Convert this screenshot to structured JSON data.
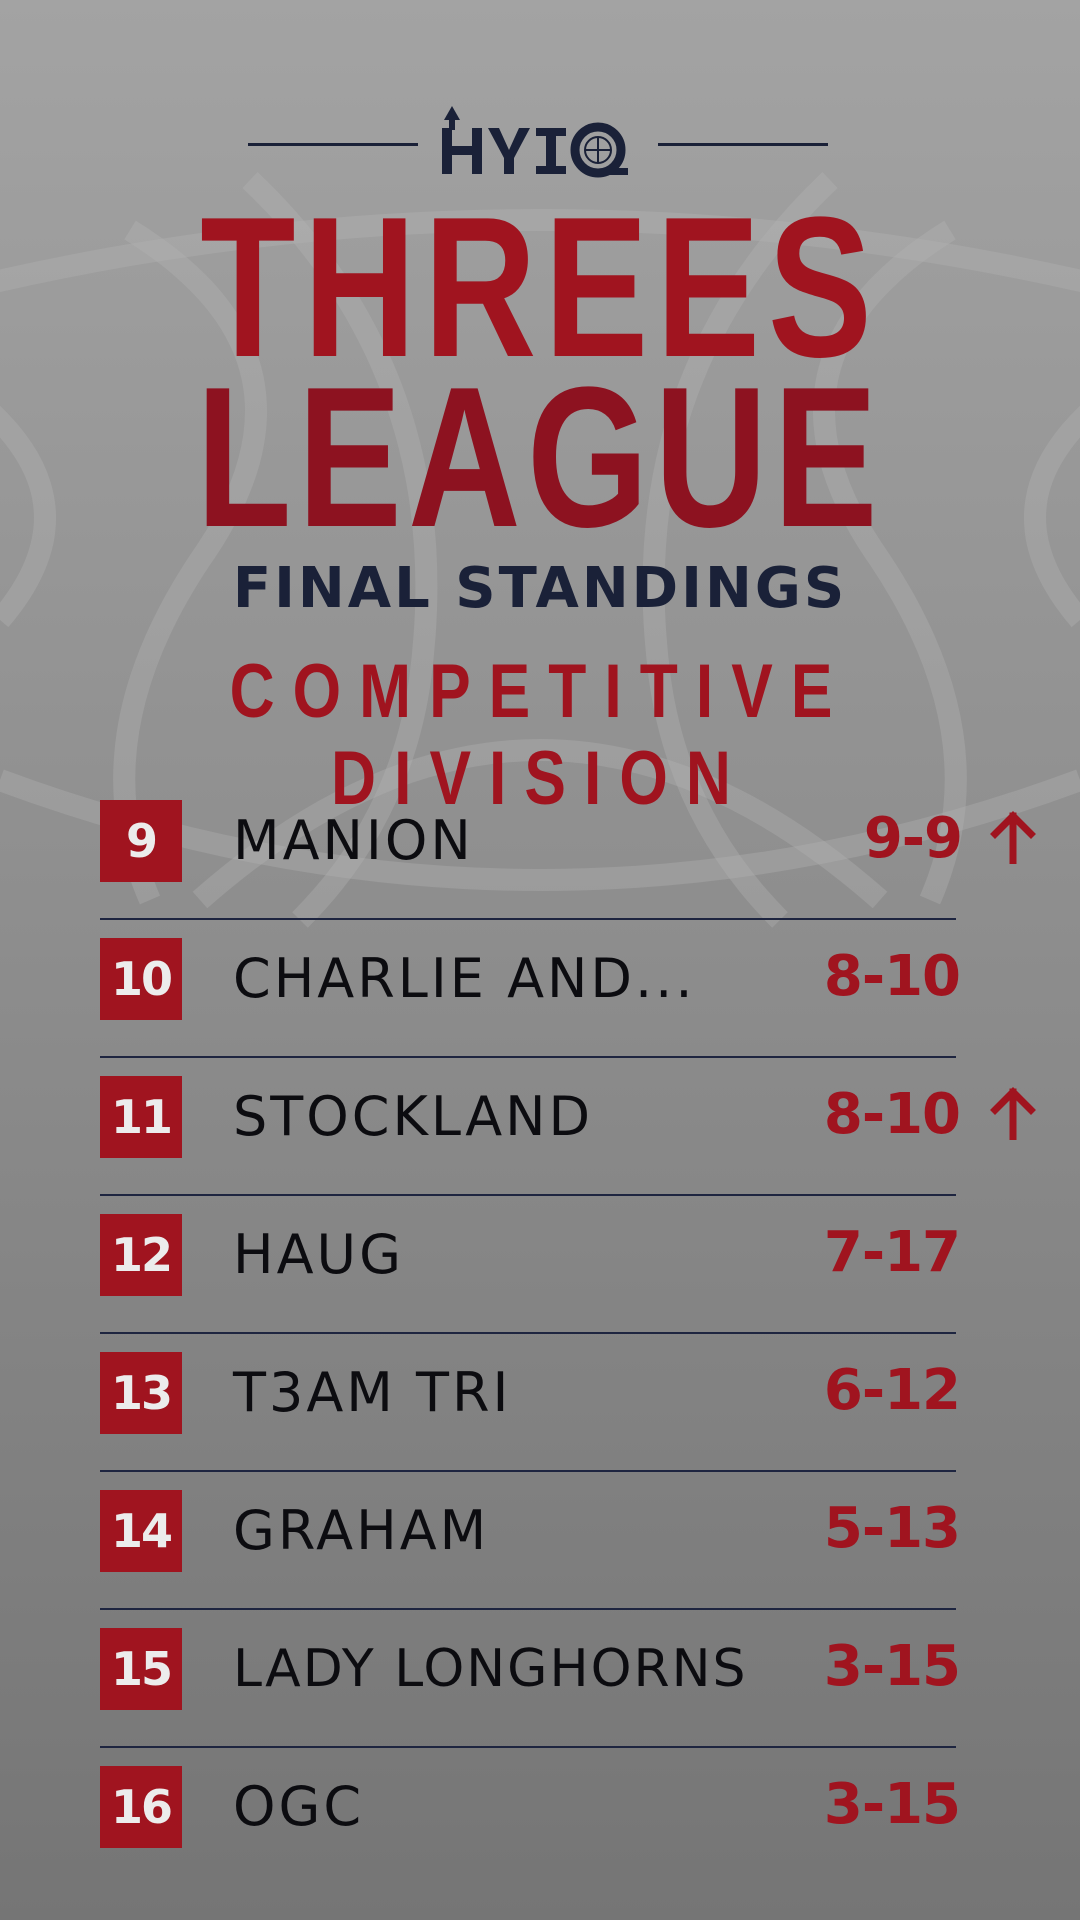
{
  "brand": {
    "logo_text": "HYIQ"
  },
  "title": {
    "line1": "THREES",
    "line2": "LEAGUE",
    "subtitle": "FINAL STANDINGS",
    "division": "COMPETITIVE DIVISION"
  },
  "colors": {
    "accent_red": "#a0141f",
    "navy": "#1a2138",
    "background_top": "#a3a3a3",
    "background_bottom": "#757575"
  },
  "standings": [
    {
      "rank": "9",
      "team": "MANION",
      "record": "9-9",
      "trend": "up-arrow-icon"
    },
    {
      "rank": "10",
      "team": "CHARLIE AND...",
      "record": "8-10",
      "trend": ""
    },
    {
      "rank": "11",
      "team": "STOCKLAND",
      "record": "8-10",
      "trend": "up-arrow-icon"
    },
    {
      "rank": "12",
      "team": "HAUG",
      "record": "7-17",
      "trend": ""
    },
    {
      "rank": "13",
      "team": "T3AM TRI",
      "record": "6-12",
      "trend": ""
    },
    {
      "rank": "14",
      "team": "GRAHAM",
      "record": "5-13",
      "trend": ""
    },
    {
      "rank": "15",
      "team": "LADY LONGHORNS",
      "record": "3-15",
      "trend": ""
    },
    {
      "rank": "16",
      "team": "OGC",
      "record": "3-15",
      "trend": ""
    }
  ]
}
